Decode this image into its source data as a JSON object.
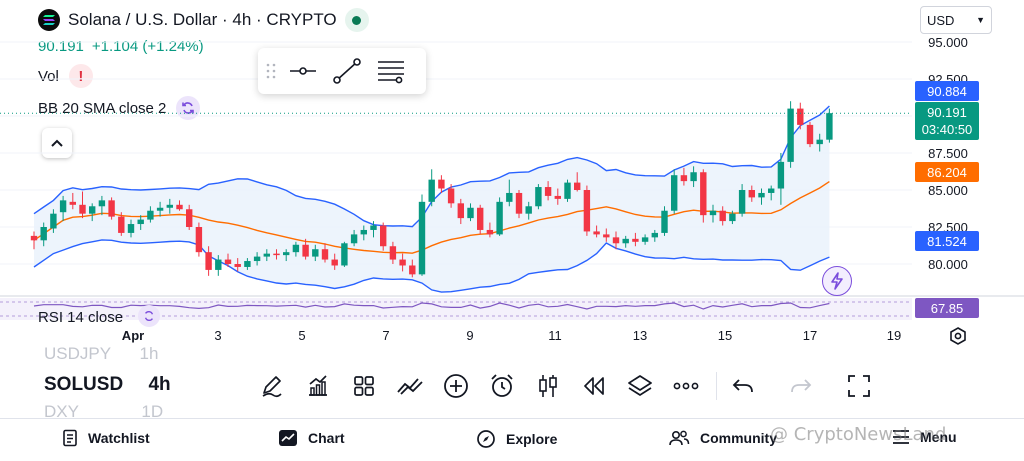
{
  "header": {
    "title": "Solana / U.S. Dollar · 4h · CRYPTO",
    "price": "90.191",
    "change": "+1.104 (+1.24%)",
    "currency": "USD"
  },
  "indicators": {
    "vol_label": "Vol",
    "bb_label": "BB 20 SMA close 2",
    "rsi_label": "RSI 14 close"
  },
  "price_tags": {
    "bb_upper": "90.884",
    "last_price": "90.191",
    "countdown": "03:40:50",
    "bb_basis": "86.204",
    "bb_lower": "81.524",
    "rsi_value": "67.85"
  },
  "colors": {
    "up": "#089981",
    "down": "#f23645",
    "bb_band": "#2962ff",
    "bb_basis": "#ff6d00",
    "bb_fill": "#e8f1fb",
    "rsi": "#7e57c2"
  },
  "x_axis": {
    "labels": [
      {
        "text": "Apr",
        "bold": true
      },
      {
        "text": "3",
        "bold": false
      },
      {
        "text": "5",
        "bold": false
      },
      {
        "text": "7",
        "bold": false
      },
      {
        "text": "9",
        "bold": false
      },
      {
        "text": "11",
        "bold": false
      },
      {
        "text": "13",
        "bold": false
      },
      {
        "text": "15",
        "bold": false
      },
      {
        "text": "17",
        "bold": false
      },
      {
        "text": "19",
        "bold": false
      }
    ]
  },
  "symbols": {
    "prev": "USDJPY",
    "prev_interval": "1h",
    "current": "SOLUSD",
    "current_interval": "4h",
    "next": "DXY",
    "next_interval": "1D"
  },
  "toolbar_icons": [
    "pencil-icon",
    "indicators-icon",
    "layout-grid-icon",
    "compare-icon",
    "add-icon",
    "alert-clock-icon",
    "candles-icon",
    "replay-icon",
    "layers-icon",
    "more-icon",
    "undo-icon",
    "redo-icon",
    "fullscreen-icon"
  ],
  "nav": {
    "watchlist": "Watchlist",
    "chart": "Chart",
    "explore": "Explore",
    "community": "Community",
    "menu": "Menu"
  },
  "watermark": "@ CryptoNewsLand",
  "chart_data": {
    "type": "candlestick",
    "title": "Solana / U.S. Dollar · 4h · CRYPTO",
    "x_ticks": [
      "Apr",
      "3",
      "5",
      "7",
      "9",
      "11",
      "13",
      "15",
      "17",
      "19"
    ],
    "y_ticks": [
      80.0,
      82.5,
      85.0,
      87.5,
      90.0,
      92.5,
      95.0
    ],
    "ylim": [
      78.4,
      95.5
    ],
    "candles": [
      [
        81.9,
        82.2,
        81.0,
        81.6
      ],
      [
        81.6,
        82.8,
        81.2,
        82.5
      ],
      [
        82.4,
        83.7,
        82.1,
        83.4
      ],
      [
        83.5,
        84.6,
        82.9,
        84.3
      ],
      [
        84.2,
        84.8,
        83.7,
        84.0
      ],
      [
        84.0,
        84.9,
        83.1,
        83.4
      ],
      [
        83.4,
        84.1,
        82.9,
        83.9
      ],
      [
        83.9,
        84.6,
        83.3,
        84.3
      ],
      [
        84.3,
        84.5,
        83.0,
        83.2
      ],
      [
        83.2,
        83.5,
        81.9,
        82.1
      ],
      [
        82.1,
        83.0,
        81.8,
        82.7
      ],
      [
        82.7,
        83.3,
        82.3,
        83.0
      ],
      [
        83.0,
        83.9,
        82.8,
        83.6
      ],
      [
        83.6,
        84.2,
        83.2,
        83.8
      ],
      [
        83.8,
        84.4,
        83.4,
        84.0
      ],
      [
        84.0,
        84.3,
        83.6,
        83.7
      ],
      [
        83.7,
        84.0,
        82.3,
        82.5
      ],
      [
        82.5,
        82.8,
        80.5,
        80.8
      ],
      [
        80.8,
        81.2,
        79.2,
        79.6
      ],
      [
        79.6,
        80.6,
        79.2,
        80.3
      ],
      [
        80.3,
        80.7,
        79.8,
        80.0
      ],
      [
        80.0,
        80.4,
        79.5,
        79.8
      ],
      [
        79.8,
        80.4,
        79.6,
        80.2
      ],
      [
        80.2,
        80.8,
        79.9,
        80.5
      ],
      [
        80.5,
        81.0,
        80.2,
        80.7
      ],
      [
        80.7,
        81.0,
        80.3,
        80.6
      ],
      [
        80.6,
        81.0,
        80.2,
        80.8
      ],
      [
        80.8,
        81.5,
        80.5,
        81.3
      ],
      [
        81.3,
        81.7,
        80.3,
        80.5
      ],
      [
        80.5,
        81.3,
        80.2,
        81.0
      ],
      [
        81.0,
        81.4,
        80.1,
        80.3
      ],
      [
        80.3,
        80.7,
        79.6,
        79.9
      ],
      [
        79.9,
        81.5,
        79.8,
        81.4
      ],
      [
        81.4,
        82.3,
        81.2,
        82.0
      ],
      [
        82.0,
        82.6,
        81.6,
        82.3
      ],
      [
        82.3,
        82.9,
        81.8,
        82.6
      ],
      [
        82.6,
        82.8,
        80.9,
        81.2
      ],
      [
        81.2,
        81.5,
        80.0,
        80.3
      ],
      [
        80.3,
        80.7,
        79.5,
        79.9
      ],
      [
        79.9,
        80.3,
        79.1,
        79.3
      ],
      [
        79.3,
        84.7,
        79.2,
        84.2
      ],
      [
        84.2,
        86.4,
        83.9,
        85.7
      ],
      [
        85.7,
        86.0,
        84.8,
        85.1
      ],
      [
        85.1,
        85.4,
        83.8,
        84.1
      ],
      [
        84.1,
        84.4,
        82.7,
        83.1
      ],
      [
        83.1,
        84.1,
        82.9,
        83.8
      ],
      [
        83.8,
        84.0,
        82.0,
        82.3
      ],
      [
        82.3,
        82.8,
        81.8,
        82.0
      ],
      [
        82.0,
        84.5,
        81.9,
        84.2
      ],
      [
        84.2,
        85.7,
        83.9,
        84.8
      ],
      [
        84.8,
        85.0,
        83.1,
        83.4
      ],
      [
        83.4,
        84.2,
        83.0,
        83.9
      ],
      [
        83.9,
        85.4,
        83.7,
        85.2
      ],
      [
        85.2,
        85.6,
        84.3,
        84.6
      ],
      [
        84.6,
        85.1,
        84.0,
        84.4
      ],
      [
        84.4,
        85.7,
        84.2,
        85.5
      ],
      [
        85.5,
        86.2,
        84.9,
        85.0
      ],
      [
        85.0,
        85.3,
        81.9,
        82.2
      ],
      [
        82.2,
        82.6,
        81.8,
        82.0
      ],
      [
        82.0,
        82.4,
        81.5,
        81.8
      ],
      [
        81.8,
        82.2,
        81.0,
        81.4
      ],
      [
        81.4,
        81.9,
        81.1,
        81.7
      ],
      [
        81.7,
        82.1,
        81.2,
        81.5
      ],
      [
        81.5,
        82.0,
        81.3,
        81.8
      ],
      [
        81.8,
        82.3,
        81.5,
        82.1
      ],
      [
        82.1,
        83.9,
        81.9,
        83.6
      ],
      [
        83.6,
        86.4,
        83.4,
        86.0
      ],
      [
        86.0,
        86.5,
        85.3,
        85.6
      ],
      [
        85.6,
        86.6,
        85.2,
        86.2
      ],
      [
        86.2,
        86.4,
        82.8,
        83.3
      ],
      [
        83.3,
        84.0,
        82.8,
        83.6
      ],
      [
        83.6,
        83.9,
        82.6,
        82.9
      ],
      [
        82.9,
        83.6,
        82.7,
        83.4
      ],
      [
        83.4,
        85.4,
        83.2,
        85.0
      ],
      [
        85.0,
        85.3,
        84.2,
        84.5
      ],
      [
        84.5,
        85.1,
        84.0,
        84.8
      ],
      [
        84.8,
        85.3,
        84.3,
        85.1
      ],
      [
        85.1,
        87.5,
        84.0,
        86.9
      ],
      [
        86.9,
        91.0,
        86.5,
        90.5
      ],
      [
        90.5,
        90.9,
        89.1,
        89.4
      ],
      [
        89.4,
        89.6,
        87.9,
        88.1
      ],
      [
        88.1,
        88.8,
        87.6,
        88.4
      ],
      [
        88.4,
        90.5,
        88.2,
        90.19
      ]
    ],
    "bollinger": {
      "period": 20,
      "stddev": 2,
      "upper_last": 90.884,
      "basis_last": 86.204,
      "lower_last": 81.524
    },
    "rsi": {
      "period": 14,
      "last": 67.85
    }
  }
}
